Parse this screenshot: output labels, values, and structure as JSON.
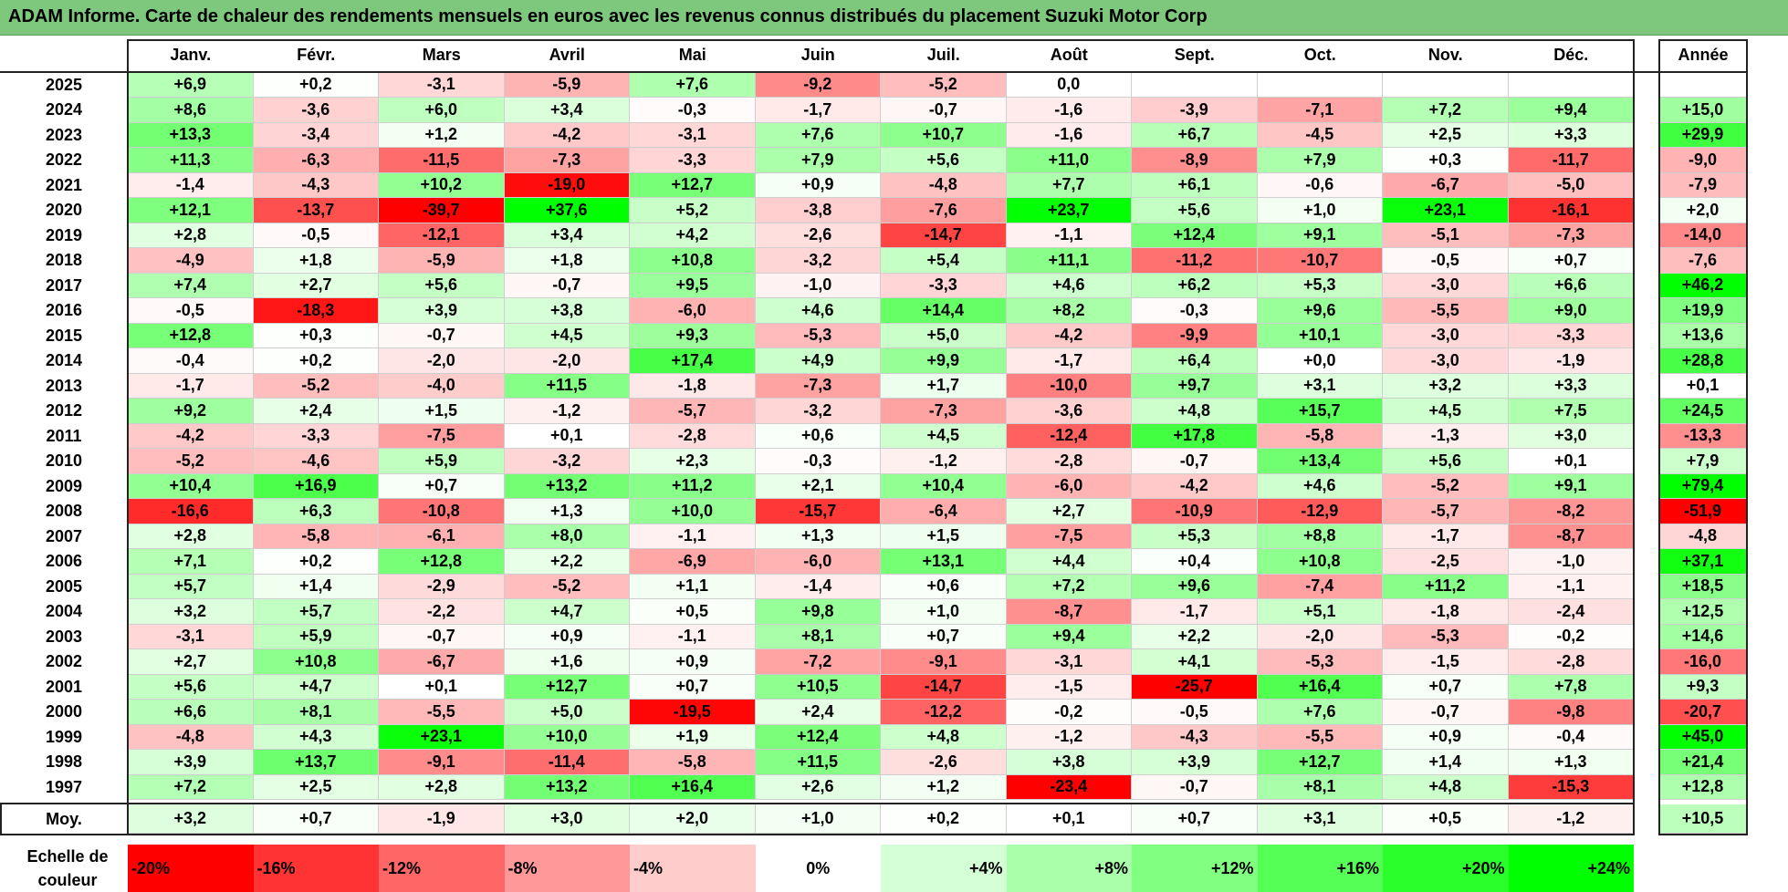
{
  "title": "ADAM Informe. Carte de chaleur des rendements mensuels en euros avec les revenus connus distribués du placement Suzuki Motor Corp",
  "chart_data": {
    "type": "heatmap",
    "title": "ADAM Informe. Carte de chaleur des rendements mensuels en euros avec les revenus connus distribués du placement Suzuki Motor Corp",
    "months": [
      "Janv.",
      "Févr.",
      "Mars",
      "Avril",
      "Mai",
      "Juin",
      "Juil.",
      "Août",
      "Sept.",
      "Oct.",
      "Nov.",
      "Déc."
    ],
    "year_header": "Année",
    "rows": [
      {
        "year": "2025",
        "values": [
          "+6,9",
          "+0,2",
          "-3,1",
          "-5,9",
          "+7,6",
          "-9,2",
          "-5,2",
          "0,0",
          "",
          "",
          "",
          ""
        ],
        "annual": ""
      },
      {
        "year": "2024",
        "values": [
          "+8,6",
          "-3,6",
          "+6,0",
          "+3,4",
          "-0,3",
          "-1,7",
          "-0,7",
          "-1,6",
          "-3,9",
          "-7,1",
          "+7,2",
          "+9,4"
        ],
        "annual": "+15,0"
      },
      {
        "year": "2023",
        "values": [
          "+13,3",
          "-3,4",
          "+1,2",
          "-4,2",
          "-3,1",
          "+7,6",
          "+10,7",
          "-1,6",
          "+6,7",
          "-4,5",
          "+2,5",
          "+3,3"
        ],
        "annual": "+29,9"
      },
      {
        "year": "2022",
        "values": [
          "+11,3",
          "-6,3",
          "-11,5",
          "-7,3",
          "-3,3",
          "+7,9",
          "+5,6",
          "+11,0",
          "-8,9",
          "+7,9",
          "+0,3",
          "-11,7"
        ],
        "annual": "-9,0"
      },
      {
        "year": "2021",
        "values": [
          "-1,4",
          "-4,3",
          "+10,2",
          "-19,0",
          "+12,7",
          "+0,9",
          "-4,8",
          "+7,7",
          "+6,1",
          "-0,6",
          "-6,7",
          "-5,0"
        ],
        "annual": "-7,9"
      },
      {
        "year": "2020",
        "values": [
          "+12,1",
          "-13,7",
          "-39,7",
          "+37,6",
          "+5,2",
          "-3,8",
          "-7,6",
          "+23,7",
          "+5,6",
          "+1,0",
          "+23,1",
          "-16,1"
        ],
        "annual": "+2,0"
      },
      {
        "year": "2019",
        "values": [
          "+2,8",
          "-0,5",
          "-12,1",
          "+3,4",
          "+4,2",
          "-2,6",
          "-14,7",
          "-1,1",
          "+12,4",
          "+9,1",
          "-5,1",
          "-7,3"
        ],
        "annual": "-14,0"
      },
      {
        "year": "2018",
        "values": [
          "-4,9",
          "+1,8",
          "-5,9",
          "+1,8",
          "+10,8",
          "-3,2",
          "+5,4",
          "+11,1",
          "-11,2",
          "-10,7",
          "-0,5",
          "+0,7"
        ],
        "annual": "-7,6"
      },
      {
        "year": "2017",
        "values": [
          "+7,4",
          "+2,7",
          "+5,6",
          "-0,7",
          "+9,5",
          "-1,0",
          "-3,3",
          "+4,6",
          "+6,2",
          "+5,3",
          "-3,0",
          "+6,6"
        ],
        "annual": "+46,2"
      },
      {
        "year": "2016",
        "values": [
          "-0,5",
          "-18,3",
          "+3,9",
          "+3,8",
          "-6,0",
          "+4,6",
          "+14,4",
          "+8,2",
          "-0,3",
          "+9,6",
          "-5,5",
          "+9,0"
        ],
        "annual": "+19,9"
      },
      {
        "year": "2015",
        "values": [
          "+12,8",
          "+0,3",
          "-0,7",
          "+4,5",
          "+9,3",
          "-5,3",
          "+5,0",
          "-4,2",
          "-9,9",
          "+10,1",
          "-3,0",
          "-3,3"
        ],
        "annual": "+13,6"
      },
      {
        "year": "2014",
        "values": [
          "-0,4",
          "+0,2",
          "-2,0",
          "-2,0",
          "+17,4",
          "+4,9",
          "+9,9",
          "-1,7",
          "+6,4",
          "+0,0",
          "-3,0",
          "-1,9"
        ],
        "annual": "+28,8"
      },
      {
        "year": "2013",
        "values": [
          "-1,7",
          "-5,2",
          "-4,0",
          "+11,5",
          "-1,8",
          "-7,3",
          "+1,7",
          "-10,0",
          "+9,7",
          "+3,1",
          "+3,2",
          "+3,3"
        ],
        "annual": "+0,1"
      },
      {
        "year": "2012",
        "values": [
          "+9,2",
          "+2,4",
          "+1,5",
          "-1,2",
          "-5,7",
          "-3,2",
          "-7,3",
          "-3,6",
          "+4,8",
          "+15,7",
          "+4,5",
          "+7,5"
        ],
        "annual": "+24,5"
      },
      {
        "year": "2011",
        "values": [
          "-4,2",
          "-3,3",
          "-7,5",
          "+0,1",
          "-2,8",
          "+0,6",
          "+4,5",
          "-12,4",
          "+17,8",
          "-5,8",
          "-1,3",
          "+3,0"
        ],
        "annual": "-13,3"
      },
      {
        "year": "2010",
        "values": [
          "-5,2",
          "-4,6",
          "+5,9",
          "-3,2",
          "+2,3",
          "-0,3",
          "-1,2",
          "-2,8",
          "-0,7",
          "+13,4",
          "+5,6",
          "+0,1"
        ],
        "annual": "+7,9"
      },
      {
        "year": "2009",
        "values": [
          "+10,4",
          "+16,9",
          "+0,7",
          "+13,2",
          "+11,2",
          "+2,1",
          "+10,4",
          "-6,0",
          "-4,2",
          "+4,6",
          "-5,2",
          "+9,1"
        ],
        "annual": "+79,4"
      },
      {
        "year": "2008",
        "values": [
          "-16,6",
          "+6,3",
          "-10,8",
          "+1,3",
          "+10,0",
          "-15,7",
          "-6,4",
          "+2,7",
          "-10,9",
          "-12,9",
          "-5,7",
          "-8,2"
        ],
        "annual": "-51,9"
      },
      {
        "year": "2007",
        "values": [
          "+2,8",
          "-5,8",
          "-6,1",
          "+8,0",
          "-1,1",
          "+1,3",
          "+1,5",
          "-7,5",
          "+5,3",
          "+8,8",
          "-1,7",
          "-8,7"
        ],
        "annual": "-4,8"
      },
      {
        "year": "2006",
        "values": [
          "+7,1",
          "+0,2",
          "+12,8",
          "+2,2",
          "-6,9",
          "-6,0",
          "+13,1",
          "+4,4",
          "+0,4",
          "+10,8",
          "-2,5",
          "-1,0"
        ],
        "annual": "+37,1"
      },
      {
        "year": "2005",
        "values": [
          "+5,7",
          "+1,4",
          "-2,9",
          "-5,2",
          "+1,1",
          "-1,4",
          "+0,6",
          "+7,2",
          "+9,6",
          "-7,4",
          "+11,2",
          "-1,1"
        ],
        "annual": "+18,5"
      },
      {
        "year": "2004",
        "values": [
          "+3,2",
          "+5,7",
          "-2,2",
          "+4,7",
          "+0,5",
          "+9,8",
          "+1,0",
          "-8,7",
          "-1,7",
          "+5,1",
          "-1,8",
          "-2,4"
        ],
        "annual": "+12,5"
      },
      {
        "year": "2003",
        "values": [
          "-3,1",
          "+5,9",
          "-0,7",
          "+0,9",
          "-1,1",
          "+8,1",
          "+0,7",
          "+9,4",
          "+2,2",
          "-2,0",
          "-5,3",
          "-0,2"
        ],
        "annual": "+14,6"
      },
      {
        "year": "2002",
        "values": [
          "+2,7",
          "+10,8",
          "-6,7",
          "+1,6",
          "+0,9",
          "-7,2",
          "-9,1",
          "-3,1",
          "+4,1",
          "-5,3",
          "-1,5",
          "-2,8"
        ],
        "annual": "-16,0"
      },
      {
        "year": "2001",
        "values": [
          "+5,6",
          "+4,7",
          "+0,1",
          "+12,7",
          "+0,7",
          "+10,5",
          "-14,7",
          "-1,5",
          "-25,7",
          "+16,4",
          "+0,7",
          "+7,8"
        ],
        "annual": "+9,3"
      },
      {
        "year": "2000",
        "values": [
          "+6,6",
          "+8,1",
          "-5,5",
          "+5,0",
          "-19,5",
          "+2,4",
          "-12,2",
          "-0,2",
          "-0,5",
          "+7,6",
          "-0,7",
          "-9,8"
        ],
        "annual": "-20,7"
      },
      {
        "year": "1999",
        "values": [
          "-4,8",
          "+4,3",
          "+23,1",
          "+10,0",
          "+1,9",
          "+12,4",
          "+4,8",
          "-1,2",
          "-4,3",
          "-5,5",
          "+0,9",
          "-0,4"
        ],
        "annual": "+45,0"
      },
      {
        "year": "1998",
        "values": [
          "+3,9",
          "+13,7",
          "-9,1",
          "-11,4",
          "-5,8",
          "+11,5",
          "-2,6",
          "+3,8",
          "+3,9",
          "+12,7",
          "+1,4",
          "+1,3"
        ],
        "annual": "+21,4"
      },
      {
        "year": "1997",
        "values": [
          "+7,2",
          "+2,5",
          "+2,8",
          "+13,2",
          "+16,4",
          "+2,6",
          "+1,2",
          "-23,4",
          "-0,7",
          "+8,1",
          "+4,8",
          "-15,3"
        ],
        "annual": "+12,8"
      }
    ],
    "average": {
      "label": "Moy.",
      "values": [
        "+3,2",
        "+0,7",
        "-1,9",
        "+3,0",
        "+2,0",
        "+1,0",
        "+0,2",
        "+0,1",
        "+0,7",
        "+3,1",
        "+0,5",
        "-1,2"
      ],
      "annual": "+10,5"
    },
    "scale": {
      "label": "Echelle de couleur",
      "steps": [
        "-20%",
        "-16%",
        "-12%",
        "-8%",
        "-4%",
        "0%",
        "+4%",
        "+8%",
        "+12%",
        "+16%",
        "+20%",
        "+24%"
      ],
      "values": [
        -20,
        -16,
        -12,
        -8,
        -4,
        0,
        4,
        8,
        12,
        16,
        20,
        24
      ]
    },
    "colors": {
      "negative": "#ff0000",
      "neutral": "#ffffff",
      "positive": "#00ff00",
      "header": "#7dc87d"
    }
  }
}
